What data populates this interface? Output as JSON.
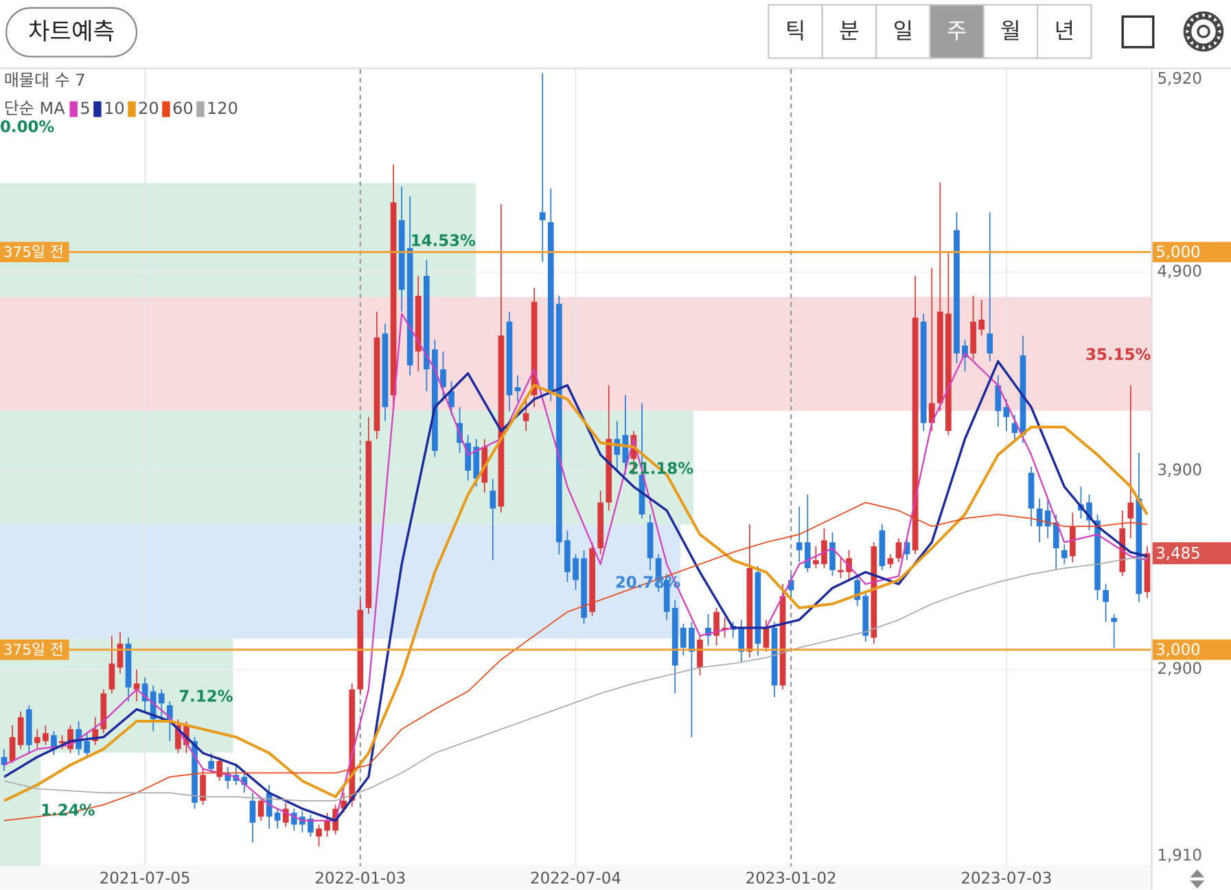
{
  "toolbar": {
    "button": "차트예측",
    "periods": [
      "틱",
      "분",
      "일",
      "주",
      "월",
      "년"
    ],
    "selected": 3
  },
  "chart_data": {
    "type": "candlestick",
    "open": [
      2460,
      2440,
      2520,
      2700,
      2530,
      2540,
      2570,
      2530,
      2500,
      2600,
      2540,
      2540,
      2600,
      2800,
      2910,
      3030,
      2800,
      2830,
      2790,
      2780,
      2720,
      2500,
      2520,
      2540,
      2240,
      2440,
      2360,
      2380,
      2370,
      2360,
      2240,
      2160,
      2280,
      2180,
      2130,
      2180,
      2160,
      2150,
      2060,
      2090,
      2090,
      2200,
      2240,
      2800,
      3210,
      4100,
      4590,
      4280,
      5160,
      5020,
      4500,
      4880,
      4510,
      4410,
      4300,
      4140,
      4040,
      4020,
      3840,
      3800,
      3720,
      4650,
      4320,
      4150,
      4280,
      5200,
      5150,
      4740,
      3550,
      3460,
      3460,
      3190,
      3510,
      3740,
      4060,
      4080,
      3960,
      3880,
      3640,
      3460,
      3350,
      3210,
      3110,
      3110,
      2910,
      3110,
      3070,
      3100,
      3120,
      3110,
      2990,
      3390,
      3010,
      3110,
      2820,
      3350,
      3540,
      3540,
      3430,
      3430,
      3540,
      3390,
      3390,
      3350,
      3270,
      3060,
      3600,
      3430,
      3460,
      3540,
      3500,
      4650,
      4140,
      4240,
      4100,
      5110,
      4530,
      4490,
      4610,
      4590,
      4330,
      4220,
      4140,
      4480,
      3890,
      3710,
      3700,
      3640,
      3500,
      3470,
      3730,
      3740,
      3650,
      3300,
      3160,
      3390,
      3660,
      3760,
      3290
    ],
    "high": [
      2500,
      2620,
      2690,
      2720,
      2600,
      2620,
      2590,
      2570,
      2620,
      2640,
      2580,
      2660,
      2800,
      3070,
      3090,
      3060,
      2900,
      2860,
      2820,
      2800,
      2740,
      2650,
      2640,
      2560,
      2400,
      2480,
      2460,
      2410,
      2420,
      2380,
      2280,
      2260,
      2320,
      2200,
      2230,
      2200,
      2190,
      2170,
      2120,
      2180,
      2220,
      2280,
      2830,
      3250,
      4170,
      4700,
      4640,
      5440,
      5330,
      5280,
      4880,
      4960,
      4560,
      4500,
      4350,
      4220,
      4080,
      4060,
      4060,
      3860,
      5240,
      4700,
      4380,
      4260,
      4820,
      5900,
      5320,
      4780,
      3600,
      3480,
      3500,
      3540,
      3800,
      4330,
      4150,
      4280,
      4100,
      4240,
      3680,
      3480,
      3380,
      3250,
      3130,
      3140,
      3070,
      3180,
      3210,
      3160,
      3140,
      3150,
      3630,
      3420,
      3150,
      3140,
      3330,
      3380,
      3720,
      3780,
      3520,
      3610,
      3590,
      3460,
      3500,
      3370,
      3290,
      3540,
      3630,
      3480,
      3560,
      3560,
      4880,
      4690,
      4920,
      5350,
      5000,
      5200,
      4560,
      4780,
      4760,
      5200,
      4380,
      4260,
      4180,
      4580,
      3920,
      3760,
      3760,
      3680,
      3530,
      3690,
      3820,
      3780,
      3680,
      3330,
      3180,
      3700,
      4330,
      3990,
      3520
    ],
    "low": [
      2390,
      2430,
      2500,
      2480,
      2500,
      2520,
      2470,
      2500,
      2480,
      2470,
      2460,
      2520,
      2580,
      2780,
      2880,
      2740,
      2740,
      2690,
      2590,
      2640,
      2540,
      2480,
      2480,
      2200,
      2220,
      2380,
      2340,
      2300,
      2320,
      2280,
      2030,
      2140,
      2100,
      2100,
      2110,
      2090,
      2080,
      2060,
      2010,
      2060,
      2070,
      2180,
      2210,
      2780,
      3180,
      4060,
      4150,
      4230,
      4700,
      4380,
      4400,
      4300,
      3970,
      4250,
      4180,
      3990,
      3850,
      3820,
      3790,
      3450,
      3690,
      4200,
      4250,
      4100,
      4220,
      4950,
      4250,
      3480,
      3340,
      3300,
      3130,
      3170,
      3480,
      3700,
      3900,
      3880,
      3880,
      3660,
      3400,
      3290,
      3150,
      2780,
      2970,
      2560,
      2870,
      3020,
      3020,
      3060,
      3060,
      2940,
      2960,
      2970,
      2990,
      2760,
      2800,
      3260,
      3440,
      3390,
      3410,
      3410,
      3370,
      3360,
      3350,
      3220,
      3040,
      3030,
      3400,
      3410,
      3440,
      3450,
      3480,
      4100,
      4100,
      4200,
      4080,
      4440,
      4400,
      4460,
      4580,
      4450,
      4120,
      4100,
      4050,
      4040,
      3620,
      3540,
      3560,
      3400,
      3430,
      3440,
      3660,
      3600,
      3250,
      3140,
      3010,
      3370,
      3560,
      3240,
      3260
    ],
    "close": [
      2420,
      2560,
      2660,
      2520,
      2560,
      2580,
      2500,
      2540,
      2600,
      2500,
      2480,
      2600,
      2780,
      2930,
      3030,
      2810,
      2830,
      2740,
      2650,
      2730,
      2650,
      2620,
      2620,
      2230,
      2370,
      2400,
      2440,
      2340,
      2340,
      2320,
      2130,
      2240,
      2160,
      2140,
      2200,
      2120,
      2120,
      2080,
      2100,
      2140,
      2200,
      2240,
      2800,
      3200,
      4050,
      4570,
      4220,
      5250,
      4810,
      4430,
      4780,
      4410,
      4000,
      4320,
      4220,
      4040,
      3900,
      3860,
      4020,
      3710,
      4580,
      4280,
      4300,
      4190,
      4750,
      5160,
      4300,
      3540,
      3390,
      3350,
      3160,
      3510,
      3740,
      4060,
      3980,
      3940,
      4080,
      3680,
      3460,
      3350,
      3190,
      2920,
      3010,
      2990,
      3050,
      3070,
      3190,
      3110,
      3100,
      2990,
      3410,
      3030,
      3110,
      2820,
      3270,
      3300,
      3500,
      3410,
      3450,
      3550,
      3400,
      3400,
      3460,
      3250,
      3070,
      3520,
      3420,
      3460,
      3540,
      3480,
      4670,
      4140,
      4240,
      4700,
      4690,
      4490,
      4470,
      4650,
      4660,
      4490,
      4200,
      4170,
      4090,
      4080,
      3710,
      3620,
      3620,
      3510,
      3460,
      3620,
      3700,
      3650,
      3300,
      3240,
      3140,
      3610,
      3740,
      3280,
      3485
    ],
    "up_color": "#d8393b",
    "down_color": "#2b7bd8",
    "xlim": [
      -0.5,
      138.45
    ],
    "xticks": [
      {
        "value": 17,
        "label": "2021-07-05"
      },
      {
        "value": 43,
        "label": "2022-01-03"
      },
      {
        "value": 69,
        "label": "2022-07-04"
      },
      {
        "value": 95,
        "label": "2023-01-02"
      },
      {
        "value": 121,
        "label": "2023-07-03"
      }
    ],
    "ylim": [
      1910,
      5920
    ],
    "yticks": [
      {
        "value": 1910,
        "label": "1,910"
      },
      {
        "value": 2900,
        "label": "2,900"
      },
      {
        "value": 3900,
        "label": "3,900"
      },
      {
        "value": 4900,
        "label": "4,900"
      },
      {
        "value": 5920,
        "label": "5,920"
      }
    ],
    "grid": true,
    "volume_profile": {
      "title": "매물대 수 7",
      "values": [
        1.24,
        7.12,
        20.78,
        21.18,
        35.15,
        14.53,
        0.0
      ],
      "value_labels": [
        "1.24%",
        "7.12%",
        "20.78%",
        "21.18%",
        "35.15%",
        "14.53%",
        "0.00%"
      ],
      "colors": [
        "#d8eee3",
        "#d8eee3",
        "#d8e8f8",
        "#d8eee3",
        "#f8dcdd",
        "#d8eee3",
        "#d8eee3"
      ],
      "label_colors": [
        "#168a5c",
        "#168a5c",
        "#3a86d8",
        "#168a5c",
        "#d33a3a",
        "#168a5c",
        "#168a5c"
      ]
    },
    "ma": {
      "title": "단순 MA",
      "x": [
        0,
        4,
        8,
        12,
        16,
        20,
        24,
        28,
        32,
        36,
        40,
        44,
        48,
        52,
        56,
        60,
        64,
        68,
        72,
        76,
        80,
        84,
        88,
        92,
        96,
        100,
        104,
        108,
        112,
        116,
        120,
        124,
        128,
        132,
        136,
        138
      ],
      "series": [
        {
          "name": "5",
          "color": "#d63ec0",
          "width": 2,
          "values": [
            2420,
            2500,
            2520,
            2640,
            2800,
            2660,
            2400,
            2360,
            2220,
            2140,
            2140,
            2800,
            4690,
            4410,
            3980,
            4060,
            4410,
            3820,
            3430,
            4060,
            3430,
            3070,
            3110,
            3110,
            3430,
            3510,
            3330,
            3370,
            4140,
            4490,
            4330,
            3980,
            3540,
            3580,
            3470,
            3450
          ]
        },
        {
          "name": "10",
          "color": "#1b2a9c",
          "width": 3,
          "values": [
            2360,
            2460,
            2540,
            2560,
            2700,
            2640,
            2480,
            2420,
            2280,
            2200,
            2140,
            2360,
            3430,
            4220,
            4390,
            4100,
            4260,
            4330,
            3980,
            3820,
            3700,
            3390,
            3110,
            3110,
            3150,
            3310,
            3390,
            3330,
            3540,
            4060,
            4450,
            4220,
            3820,
            3620,
            3490,
            3470
          ]
        },
        {
          "name": "20",
          "color": "#e89b1a",
          "width": 3.5,
          "values": [
            2240,
            2320,
            2420,
            2500,
            2640,
            2640,
            2600,
            2560,
            2480,
            2340,
            2260,
            2480,
            2870,
            3390,
            3780,
            4060,
            4330,
            4260,
            4040,
            4020,
            3880,
            3580,
            3450,
            3390,
            3210,
            3230,
            3290,
            3350,
            3510,
            3680,
            3980,
            4120,
            4120,
            3980,
            3820,
            3680
          ]
        },
        {
          "name": "60",
          "color": "#e8471c",
          "width": 1.5,
          "values": [
            2140,
            2160,
            2180,
            2220,
            2280,
            2360,
            2380,
            2380,
            2380,
            2380,
            2380,
            2420,
            2600,
            2700,
            2790,
            2950,
            3070,
            3190,
            3250,
            3310,
            3370,
            3430,
            3490,
            3540,
            3580,
            3660,
            3740,
            3700,
            3620,
            3660,
            3680,
            3660,
            3620,
            3620,
            3640,
            3630
          ]
        },
        {
          "name": "120",
          "color": "#aaaaaa",
          "width": 1.5,
          "values": [
            2340,
            2300,
            2290,
            2280,
            2280,
            2280,
            2260,
            2260,
            2250,
            2240,
            2240,
            2300,
            2380,
            2480,
            2540,
            2600,
            2660,
            2720,
            2780,
            2830,
            2870,
            2910,
            2930,
            2960,
            3010,
            3050,
            3090,
            3150,
            3230,
            3290,
            3340,
            3380,
            3410,
            3430,
            3460,
            3460
          ]
        }
      ]
    },
    "levels": [
      {
        "name": "375일 전",
        "value": 5000,
        "label": "5,000",
        "color": "#f0a030"
      },
      {
        "name": "375일 전",
        "value": 3000,
        "label": "3,000",
        "color": "#f0a030"
      }
    ],
    "last_price": {
      "value": 3485,
      "label": "3,485",
      "color": "#d9534f"
    }
  }
}
